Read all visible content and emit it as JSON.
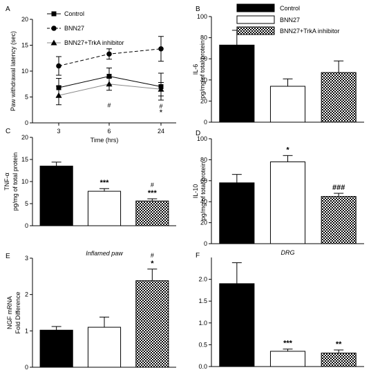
{
  "chart_data": [
    {
      "panel": "A",
      "type": "line",
      "ylabel": "Paw withdrawal latency (sec)",
      "xlabel": "Time (hrs)",
      "x": [
        3,
        6,
        24
      ],
      "ylim": [
        0,
        20
      ],
      "yticks": [
        0,
        5,
        10,
        15,
        20
      ],
      "series": [
        {
          "name": "Control",
          "marker": "square",
          "dash": "solid",
          "color": "#000000",
          "values": [
            6.8,
            9.0,
            7.0
          ],
          "errors": [
            1.8,
            1.6,
            2.6
          ]
        },
        {
          "name": "BNN27",
          "marker": "circle",
          "dash": "dashed",
          "color": "#000000",
          "values": [
            11.0,
            13.3,
            14.3
          ],
          "errors": [
            1.8,
            1.0,
            2.4
          ]
        },
        {
          "name": "BNN27+TrkA inhibitor",
          "marker": "triangle",
          "dash": "solid",
          "color": "#888888",
          "values": [
            5.3,
            7.5,
            6.5
          ],
          "errors": [
            1.8,
            1.2,
            1.3
          ]
        }
      ],
      "annotations": [
        {
          "x": 6,
          "y": 3.0,
          "text": "#"
        },
        {
          "x": 24,
          "y": 2.8,
          "text": "#"
        },
        {
          "x": 24,
          "y": 1.5,
          "text": "*"
        }
      ]
    },
    {
      "panel": "B",
      "type": "bar",
      "ylabel": "IL-6",
      "ylabel2": "pg/mg of total protein",
      "ylim": [
        0,
        100
      ],
      "yticks": [
        0,
        20,
        40,
        60,
        80,
        100
      ],
      "legend": [
        "Control",
        "BNN27",
        "BNN27+TrkA inhibitor"
      ],
      "categories": [
        "Control",
        "BNN27",
        "BNN27+TrkA inhibitor"
      ],
      "values": [
        73,
        34,
        47
      ],
      "errors": [
        14,
        7,
        11
      ],
      "labels": [
        "",
        "",
        ""
      ]
    },
    {
      "panel": "C",
      "type": "bar",
      "ylabel": "TNF-α",
      "ylabel2": "pg/mg of total protein",
      "ylim": [
        0,
        20
      ],
      "yticks": [
        0,
        5,
        10,
        15,
        20
      ],
      "categories": [
        "Control",
        "BNN27",
        "BNN27+TrkA inhibitor"
      ],
      "values": [
        13.5,
        7.8,
        5.6
      ],
      "errors": [
        0.9,
        0.6,
        0.5
      ],
      "labels": [
        "",
        "***",
        "***"
      ],
      "labels2": [
        "",
        "",
        "#"
      ]
    },
    {
      "panel": "D",
      "type": "bar",
      "ylabel": "IL-10",
      "ylabel2": "pg/mg of total protein",
      "ylim": [
        0,
        100
      ],
      "yticks": [
        0,
        20,
        40,
        60,
        80,
        100
      ],
      "categories": [
        "Control",
        "BNN27",
        "BNN27+TrkA inhibitor"
      ],
      "values": [
        58,
        78,
        45
      ],
      "errors": [
        8,
        6,
        3
      ],
      "labels": [
        "",
        "*",
        "###"
      ]
    },
    {
      "panel": "E",
      "type": "bar",
      "title": "Inflamed paw",
      "ylabel": "NGF mRNA",
      "ylabel2": "Fold Difference",
      "ylim": [
        0,
        3
      ],
      "yticks": [
        0,
        1,
        2,
        3
      ],
      "categories": [
        "Control",
        "BNN27",
        "BNN27+TrkA inhibitor"
      ],
      "values": [
        1.02,
        1.1,
        2.38
      ],
      "errors": [
        0.1,
        0.28,
        0.32
      ],
      "labels": [
        "",
        "",
        "*"
      ],
      "labels2": [
        "",
        "",
        "#"
      ]
    },
    {
      "panel": "F",
      "type": "bar",
      "title": "DRG",
      "ylim": [
        0,
        2.5
      ],
      "yticks": [
        0,
        0.5,
        1.0,
        1.5,
        2.0
      ],
      "categories": [
        "Control",
        "BNN27",
        "BNN27+TrkA inhibitor"
      ],
      "values": [
        1.9,
        0.35,
        0.31
      ],
      "errors": [
        0.48,
        0.05,
        0.07
      ],
      "labels": [
        "",
        "***",
        "**"
      ]
    }
  ]
}
